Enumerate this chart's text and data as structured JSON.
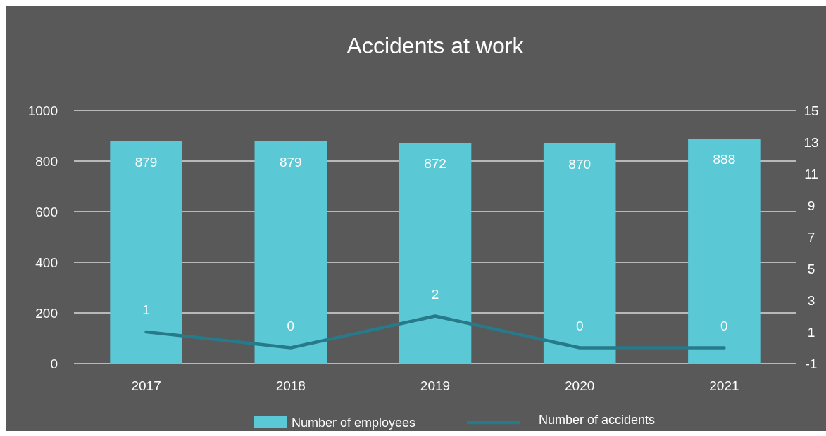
{
  "chart_data": {
    "type": "bar",
    "title": "Accidents at work",
    "categories": [
      "2017",
      "2018",
      "2019",
      "2020",
      "2021"
    ],
    "series": [
      {
        "name": "Number of employees",
        "color": "#5bc8d6",
        "values": [
          879,
          879,
          872,
          870,
          888
        ]
      },
      {
        "name": "Number of accidents",
        "type": "line",
        "axis": "y2",
        "color": "#267a8a",
        "values": [
          1,
          0,
          2,
          0,
          0
        ]
      }
    ],
    "ylim": [
      0,
      1000
    ],
    "yticks": [
      0,
      200,
      400,
      600,
      800,
      1000
    ],
    "y2lim": [
      -1,
      15
    ],
    "y2ticks": [
      -1,
      1,
      3,
      5,
      7,
      9,
      11,
      13,
      15
    ],
    "grid": "y",
    "legend": "bottom",
    "data_labels": true,
    "marker": "none",
    "line_style": "solid"
  }
}
